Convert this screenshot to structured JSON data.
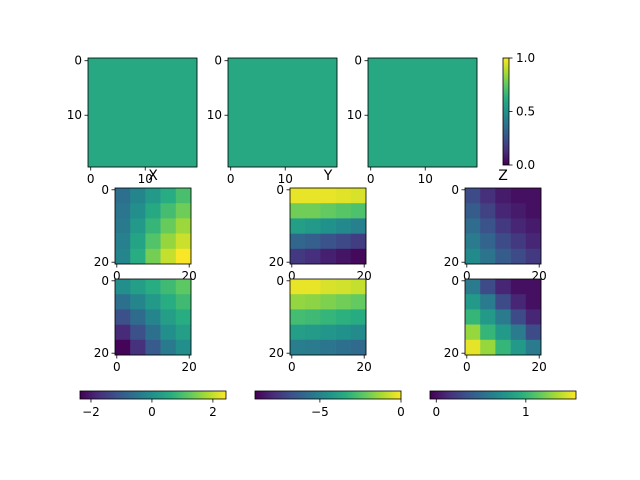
{
  "chart_data": {
    "type": "image-grid",
    "groups": [
      {
        "colorbar": {
          "orientation": "vertical",
          "lim": [
            0,
            1
          ],
          "ticks": [
            {
              "value": 0,
              "label": "0.0"
            },
            {
              "value": 0.5,
              "label": "0.5"
            },
            {
              "value": 1,
              "label": "1.0"
            }
          ]
        },
        "panels": [
          {
            "grid": [
              [
                0.6
              ]
            ],
            "xlim": [
              -0.5,
              19.5
            ],
            "ylim": [
              19.5,
              -0.5
            ],
            "xticks": [
              0,
              10
            ],
            "yticks": [
              0,
              10
            ]
          },
          {
            "grid": [
              [
                0.6
              ]
            ],
            "xlim": [
              -0.5,
              19.5
            ],
            "ylim": [
              19.5,
              -0.5
            ],
            "xticks": [
              0,
              10
            ],
            "yticks": [
              0,
              10
            ]
          },
          {
            "grid": [
              [
                0.6
              ]
            ],
            "xlim": [
              -0.5,
              19.5
            ],
            "ylim": [
              19.5,
              -0.5
            ],
            "xticks": [
              0,
              10
            ],
            "yticks": [
              0,
              10
            ]
          }
        ]
      },
      {
        "colorbar": {
          "orientation": "horizontal",
          "lim": [
            -2.36,
            2.43
          ],
          "ticks": [
            {
              "value": -2,
              "label": "−2"
            },
            0,
            2
          ]
        },
        "panels": [
          {
            "title": "X",
            "grid": [
              [
                -0.6,
                -0.2,
                0.2,
                0.6,
                1.0
              ],
              [
                -0.5,
                0.0,
                0.5,
                0.95,
                1.35
              ],
              [
                -0.4,
                0.2,
                0.8,
                1.3,
                1.7
              ],
              [
                -0.3,
                0.4,
                1.1,
                1.65,
                2.05
              ],
              [
                -0.2,
                0.6,
                1.4,
                2.0,
                2.4
              ]
            ],
            "xlim": [
              -0.5,
              20.5
            ],
            "ylim": [
              20.5,
              -0.5
            ],
            "xticks": [
              0,
              20
            ],
            "yticks": [
              0,
              20
            ]
          },
          {
            "grid": [
              [
                0.0,
                0.3,
                0.6,
                0.9,
                1.2
              ],
              [
                -0.6,
                -0.2,
                0.2,
                0.6,
                0.9
              ],
              [
                -1.2,
                -0.7,
                -0.2,
                0.3,
                0.6
              ],
              [
                -1.8,
                -1.2,
                -0.6,
                0.0,
                0.3
              ],
              [
                -2.3,
                -1.7,
                -1.0,
                -0.4,
                0.0
              ]
            ],
            "xlim": [
              -0.5,
              20.5
            ],
            "ylim": [
              20.5,
              -0.5
            ],
            "xticks": [
              0,
              20
            ],
            "yticks": [
              0,
              20
            ]
          }
        ]
      },
      {
        "colorbar": {
          "orientation": "horizontal",
          "lim": [
            -9,
            0
          ],
          "ticks": [
            {
              "value": -5,
              "label": "−5"
            },
            0
          ]
        },
        "panels": [
          {
            "title": "Y",
            "grid": [
              [
                -0.3,
                -0.3,
                -0.3,
                -0.4,
                -0.5
              ],
              [
                -2,
                -2,
                -2.2,
                -2.4,
                -2.6
              ],
              [
                -4,
                -4.2,
                -4.5,
                -4.8,
                -5.1
              ],
              [
                -6,
                -6.3,
                -6.7,
                -7,
                -7.4
              ],
              [
                -7.5,
                -7.8,
                -8.2,
                -8.5,
                -8.8
              ]
            ],
            "xlim": [
              -0.5,
              20.5
            ],
            "ylim": [
              20.5,
              -0.5
            ],
            "xticks": [
              0,
              20
            ],
            "yticks": [
              0,
              20
            ]
          },
          {
            "grid": [
              [
                -0.3,
                -0.3,
                -0.5,
                -0.6,
                -0.8
              ],
              [
                -1.5,
                -1.6,
                -1.8,
                -2,
                -2.2
              ],
              [
                -2.8,
                -2.9,
                -3.1,
                -3.3,
                -3.5
              ],
              [
                -4,
                -4.1,
                -4.3,
                -4.5,
                -4.7
              ],
              [
                -5.2,
                -5.3,
                -5.5,
                -5.7,
                -5.9
              ]
            ],
            "xlim": [
              -0.5,
              20.5
            ],
            "ylim": [
              20.5,
              -0.5
            ],
            "xticks": [
              0,
              20
            ],
            "yticks": [
              0,
              20
            ]
          }
        ]
      },
      {
        "colorbar": {
          "orientation": "horizontal",
          "lim": [
            -0.07,
            1.56
          ],
          "ticks": [
            0,
            1
          ]
        },
        "panels": [
          {
            "title": "Z",
            "grid": [
              [
                0.3,
                0.15,
                0.05,
                0.0,
                0.0
              ],
              [
                0.4,
                0.25,
                0.1,
                0.05,
                0.0
              ],
              [
                0.5,
                0.35,
                0.2,
                0.1,
                0.05
              ],
              [
                0.6,
                0.45,
                0.3,
                0.2,
                0.1
              ],
              [
                0.7,
                0.55,
                0.4,
                0.3,
                0.2
              ]
            ],
            "xlim": [
              -0.5,
              20.5
            ],
            "ylim": [
              20.5,
              -0.5
            ],
            "xticks": [
              0,
              20
            ],
            "yticks": [
              0,
              20
            ]
          },
          {
            "grid": [
              [
                0.6,
                0.3,
                0.1,
                0.0,
                0.0
              ],
              [
                0.8,
                0.6,
                0.3,
                0.1,
                0.0
              ],
              [
                1.0,
                0.8,
                0.6,
                0.3,
                0.1
              ],
              [
                1.3,
                1.0,
                0.8,
                0.6,
                0.3
              ],
              [
                1.5,
                1.3,
                1.0,
                0.8,
                0.6
              ]
            ],
            "xlim": [
              -0.5,
              20.5
            ],
            "ylim": [
              20.5,
              -0.5
            ],
            "xticks": [
              0,
              20
            ],
            "yticks": [
              0,
              20
            ]
          }
        ]
      }
    ]
  }
}
